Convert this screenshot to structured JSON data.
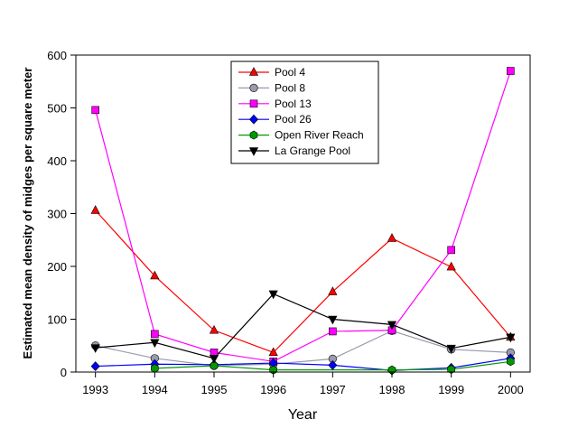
{
  "chart_data": {
    "type": "line",
    "xlabel": "Year",
    "ylabel": "Estimated mean density of midges per square meter",
    "x": [
      1993,
      1994,
      1995,
      1996,
      1997,
      1998,
      1999,
      2000
    ],
    "xticks": [
      "1993",
      "1994",
      "1995",
      "1996",
      "1997",
      "1998",
      "1999",
      "2000"
    ],
    "xlim": [
      1992.67,
      2000.33
    ],
    "ylim": [
      0,
      600
    ],
    "yticks": [
      0,
      100,
      200,
      300,
      400,
      500,
      600
    ],
    "legend_position": "top-center",
    "grid": false,
    "series": [
      {
        "name": "Pool 4",
        "color": "#ff0000",
        "marker": "triangle-up",
        "values": [
          306,
          182,
          79,
          37,
          152,
          253,
          199,
          66
        ]
      },
      {
        "name": "Pool 8",
        "color": "#9a9aac",
        "marker": "circle",
        "values": [
          50,
          26,
          12,
          15,
          25,
          78,
          43,
          37
        ]
      },
      {
        "name": "Pool 13",
        "color": "#ff00ff",
        "marker": "square",
        "values": [
          496,
          72,
          37,
          20,
          77,
          79,
          231,
          570
        ]
      },
      {
        "name": "Pool 26",
        "color": "#0000ff",
        "marker": "diamond",
        "values": [
          11,
          15,
          14,
          17,
          13,
          3,
          8,
          26
        ]
      },
      {
        "name": "Open River Reach",
        "color": "#009900",
        "marker": "hexagon",
        "values": [
          null,
          7,
          12,
          4,
          null,
          4,
          5,
          20
        ]
      },
      {
        "name": "La Grange Pool",
        "color": "#000000",
        "marker": "triangle-down",
        "values": [
          46,
          56,
          26,
          148,
          100,
          90,
          45,
          66
        ]
      }
    ]
  }
}
